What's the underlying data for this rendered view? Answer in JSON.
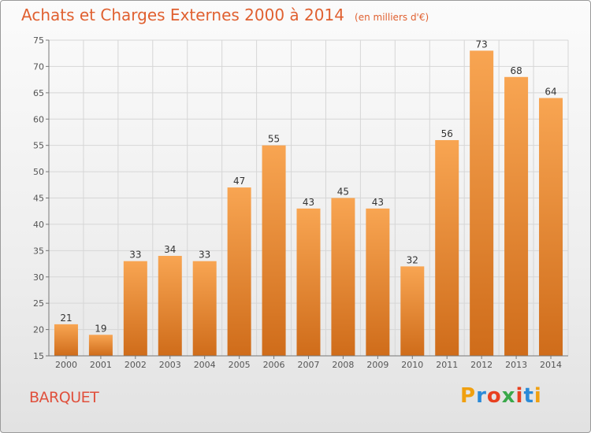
{
  "chart_data": {
    "type": "bar",
    "title": "Achats et Charges Externes 2000 à 2014",
    "unit": "(en milliers d'€)",
    "categories": [
      "2000",
      "2001",
      "2002",
      "2003",
      "2004",
      "2005",
      "2006",
      "2007",
      "2008",
      "2009",
      "2010",
      "2011",
      "2012",
      "2013",
      "2014"
    ],
    "values": [
      21,
      19,
      33,
      34,
      33,
      47,
      55,
      43,
      45,
      43,
      32,
      56,
      73,
      68,
      64
    ],
    "ylim": [
      15,
      75
    ],
    "yticks": [
      15,
      20,
      25,
      30,
      35,
      40,
      45,
      50,
      55,
      60,
      65,
      70,
      75
    ],
    "grid": true,
    "bar_color_top": "#f8a552",
    "bar_color_bottom": "#cf6c1a"
  },
  "footer": {
    "commune": "BARQUET",
    "logo": {
      "letters": [
        "P",
        "r",
        "o",
        "x",
        "i",
        "t",
        "i"
      ],
      "colors": [
        "#f0a010",
        "#2a8ad8",
        "#e84020",
        "#3aa84a",
        "#e84020",
        "#2a8ad8",
        "#f0a010"
      ]
    }
  },
  "colors": {
    "title": "#e06030",
    "commune": "#e0503c"
  }
}
